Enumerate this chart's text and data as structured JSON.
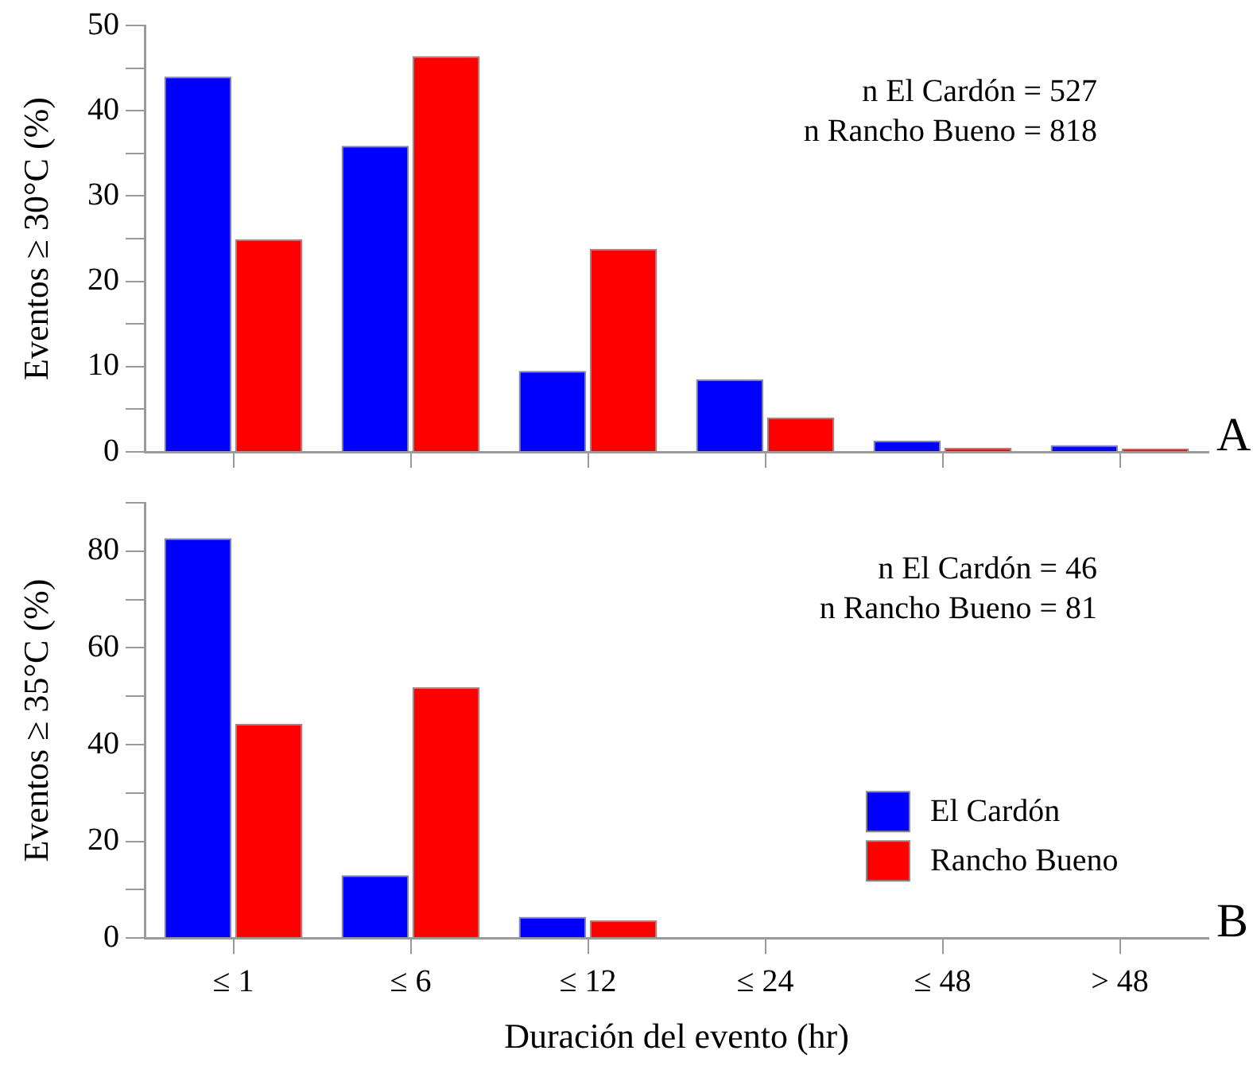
{
  "chart_data": [
    {
      "type": "bar",
      "categories": [
        null,
        null,
        null,
        null,
        null,
        null
      ],
      "ylabel": "Eventos ≥ 30°C (%)",
      "series": [
        {
          "color": "#0000ff",
          "values": [
            44.0,
            35.9,
            9.5,
            8.5,
            1.3,
            0.8
          ]
        },
        {
          "color": "#ff0000",
          "values": [
            24.9,
            46.4,
            23.8,
            4.0,
            0.5,
            0.4
          ]
        }
      ],
      "ylim": [
        0,
        50
      ],
      "yticks": [
        0,
        {
          "value": 5,
          "label": null
        },
        10,
        {
          "value": 15,
          "label": null
        },
        20,
        {
          "value": 25,
          "label": null
        },
        30,
        {
          "value": 35,
          "label": null
        },
        40,
        {
          "value": 45,
          "label": null
        },
        50
      ],
      "grid": false,
      "legend": false,
      "tick_labels": "y",
      "annotations": [
        "n El Cardón = 527",
        "n Rancho Bueno = 818",
        "A"
      ]
    },
    {
      "type": "bar",
      "categories": [
        "≤ 1",
        "≤ 6",
        "≤ 12",
        "≤ 24",
        "≤ 48",
        "> 48"
      ],
      "ylabel": "Eventos ≥ 35°C (%)",
      "xlabel": "Duración del evento (hr)",
      "series": [
        {
          "name": "El Cardón",
          "color": "#0000ff",
          "values": [
            82.7,
            13.0,
            4.4,
            0,
            0,
            0
          ]
        },
        {
          "name": "Rancho Bueno",
          "color": "#ff0000",
          "values": [
            44.3,
            51.9,
            3.7,
            0,
            0,
            0
          ]
        }
      ],
      "ylim": [
        0,
        90
      ],
      "yticks": [
        0,
        {
          "value": 10,
          "label": null
        },
        20,
        {
          "value": 30,
          "label": null
        },
        40,
        {
          "value": 50,
          "label": null
        },
        60,
        {
          "value": 70,
          "label": null
        },
        80,
        {
          "value": 90,
          "label": null
        }
      ],
      "grid": false,
      "legend": "bottom right",
      "annotations": [
        "n El Cardón = 46",
        "n Rancho Bueno = 81",
        "B"
      ]
    }
  ]
}
